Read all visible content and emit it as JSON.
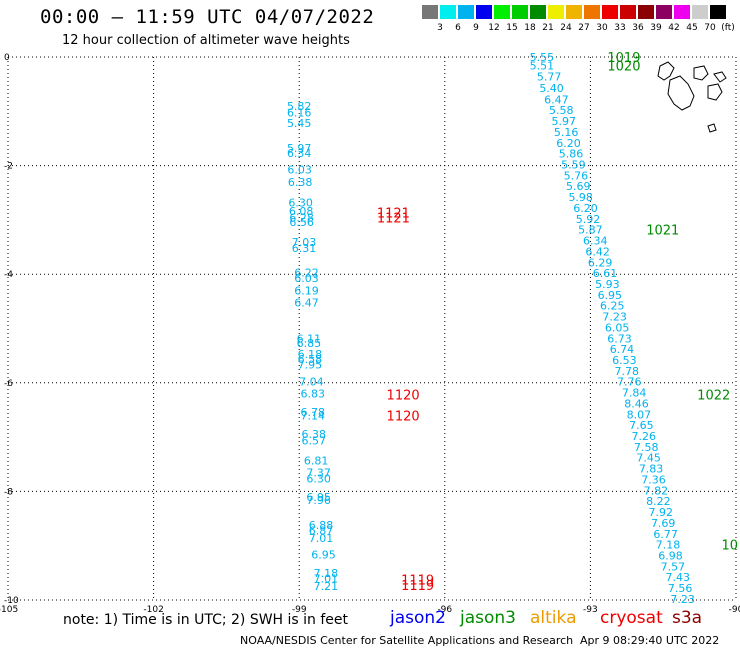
{
  "header": {
    "title": "00:00 – 11:59 UTC 04/07/2022",
    "subtitle": "12 hour collection of altimeter wave heights"
  },
  "colorbar": {
    "colors": [
      "#777777",
      "#00eeee",
      "#00b2ee",
      "#0000ee",
      "#00ee00",
      "#00cd00",
      "#008b00",
      "#eeee00",
      "#eeb400",
      "#ee7600",
      "#ee0000",
      "#cd0000",
      "#8b0000",
      "#8b0060",
      "#ee00ee",
      "#cdcdcd",
      "#000000"
    ],
    "labels": [
      "3",
      "6",
      "9",
      "12",
      "15",
      "18",
      "21",
      "24",
      "27",
      "30",
      "33",
      "36",
      "39",
      "42",
      "45",
      "70",
      "(ft)"
    ]
  },
  "axes": {
    "x_ticks": [
      "-105",
      "-102",
      "-99",
      "-96",
      "-93",
      "-90"
    ],
    "y_ticks": [
      "0",
      "-2",
      "-4",
      "-6",
      "-8",
      "-10"
    ],
    "xlim": [
      -105,
      -90
    ],
    "ylim": [
      -10,
      0
    ]
  },
  "colors": {
    "swh": "#00b2ee",
    "jason2": "#0000ee",
    "jason3": "#008b00",
    "altika": "#ee9a00",
    "cryosat": "#ee0000",
    "s3a": "#8b0000"
  },
  "track1_swh": [
    {
      "lon": -99.0,
      "lat": -0.9,
      "v": "5.82"
    },
    {
      "lon": -99.0,
      "lat": -1.02,
      "v": "6.16"
    },
    {
      "lon": -99.0,
      "lat": -1.22,
      "v": "5.45"
    },
    {
      "lon": -99.0,
      "lat": -1.68,
      "v": "5.97"
    },
    {
      "lon": -99.0,
      "lat": -1.77,
      "v": "6.34"
    },
    {
      "lon": -98.99,
      "lat": -2.07,
      "v": "6.03"
    },
    {
      "lon": -98.98,
      "lat": -2.3,
      "v": "6.38"
    },
    {
      "lon": -98.97,
      "lat": -2.68,
      "v": "6.30"
    },
    {
      "lon": -98.96,
      "lat": -2.84,
      "v": "6.08"
    },
    {
      "lon": -98.95,
      "lat": -2.96,
      "v": "6.28"
    },
    {
      "lon": -98.95,
      "lat": -3.04,
      "v": "6.56"
    },
    {
      "lon": -98.9,
      "lat": -3.41,
      "v": "7.03"
    },
    {
      "lon": -98.9,
      "lat": -3.52,
      "v": "6.31"
    },
    {
      "lon": -98.85,
      "lat": -3.97,
      "v": "6.22"
    },
    {
      "lon": -98.85,
      "lat": -4.07,
      "v": "6.03"
    },
    {
      "lon": -98.85,
      "lat": -4.3,
      "v": "6.19"
    },
    {
      "lon": -98.85,
      "lat": -4.52,
      "v": "6.47"
    },
    {
      "lon": -98.8,
      "lat": -5.18,
      "v": "6.11"
    },
    {
      "lon": -98.8,
      "lat": -5.27,
      "v": "6.85"
    },
    {
      "lon": -98.78,
      "lat": -5.47,
      "v": "6.18"
    },
    {
      "lon": -98.78,
      "lat": -5.56,
      "v": "6.58"
    },
    {
      "lon": -98.78,
      "lat": -5.66,
      "v": "7.95"
    },
    {
      "lon": -98.75,
      "lat": -5.98,
      "v": "7.04"
    },
    {
      "lon": -98.72,
      "lat": -6.2,
      "v": "6.83"
    },
    {
      "lon": -98.72,
      "lat": -6.54,
      "v": "6.78"
    },
    {
      "lon": -98.72,
      "lat": -6.6,
      "v": "7.14"
    },
    {
      "lon": -98.7,
      "lat": -6.94,
      "v": "6.38"
    },
    {
      "lon": -98.7,
      "lat": -7.06,
      "v": "6.57"
    },
    {
      "lon": -98.65,
      "lat": -7.43,
      "v": "6.81"
    },
    {
      "lon": -98.6,
      "lat": -7.65,
      "v": "7.37"
    },
    {
      "lon": -98.6,
      "lat": -7.76,
      "v": "6.30"
    },
    {
      "lon": -98.6,
      "lat": -8.1,
      "v": "6.95"
    },
    {
      "lon": -98.6,
      "lat": -8.16,
      "v": "7.96"
    },
    {
      "lon": -98.55,
      "lat": -8.62,
      "v": "6.88"
    },
    {
      "lon": -98.55,
      "lat": -8.72,
      "v": "6.87"
    },
    {
      "lon": -98.55,
      "lat": -8.86,
      "v": "7.01"
    },
    {
      "lon": -98.5,
      "lat": -9.16,
      "v": "6.95"
    },
    {
      "lon": -98.45,
      "lat": -9.5,
      "v": "7.18"
    },
    {
      "lon": -98.45,
      "lat": -9.6,
      "v": "7.01"
    },
    {
      "lon": -98.45,
      "lat": -9.74,
      "v": "7.21"
    }
  ],
  "track1_times": [
    {
      "lon": -97.4,
      "lat": -2.86,
      "t": "1121"
    },
    {
      "lon": -97.4,
      "lat": -2.96,
      "t": "1121"
    },
    {
      "lon": -97.2,
      "lat": -6.22,
      "t": "1120"
    },
    {
      "lon": -97.2,
      "lat": -6.6,
      "t": "1120"
    },
    {
      "lon": -96.9,
      "lat": -9.62,
      "t": "1119"
    },
    {
      "lon": -96.9,
      "lat": -9.72,
      "t": "1119"
    }
  ],
  "track2_swh": [
    {
      "lon": -94.0,
      "lat": 0.0,
      "v": "5.55"
    },
    {
      "lon": -94.0,
      "lat": -0.16,
      "v": "5.51"
    },
    {
      "lon": -93.85,
      "lat": -0.36,
      "v": "5.77"
    },
    {
      "lon": -93.8,
      "lat": -0.57,
      "v": "5.40"
    },
    {
      "lon": -93.7,
      "lat": -0.78,
      "v": "6.47"
    },
    {
      "lon": -93.6,
      "lat": -0.98,
      "v": "5.58"
    },
    {
      "lon": -93.55,
      "lat": -1.18,
      "v": "5.97"
    },
    {
      "lon": -93.5,
      "lat": -1.38,
      "v": "5.16"
    },
    {
      "lon": -93.45,
      "lat": -1.58,
      "v": "6.20"
    },
    {
      "lon": -93.4,
      "lat": -1.78,
      "v": "5.86"
    },
    {
      "lon": -93.35,
      "lat": -1.98,
      "v": "5.59"
    },
    {
      "lon": -93.3,
      "lat": -2.18,
      "v": "5.76"
    },
    {
      "lon": -93.25,
      "lat": -2.38,
      "v": "5.69"
    },
    {
      "lon": -93.2,
      "lat": -2.58,
      "v": "5.98"
    },
    {
      "lon": -93.1,
      "lat": -2.78,
      "v": "6.20"
    },
    {
      "lon": -93.05,
      "lat": -2.98,
      "v": "5.92"
    },
    {
      "lon": -93.0,
      "lat": -3.18,
      "v": "5.87"
    },
    {
      "lon": -92.9,
      "lat": -3.38,
      "v": "6.34"
    },
    {
      "lon": -92.85,
      "lat": -3.58,
      "v": "6.42"
    },
    {
      "lon": -92.8,
      "lat": -3.78,
      "v": "6.29"
    },
    {
      "lon": -92.7,
      "lat": -3.98,
      "v": "6.61"
    },
    {
      "lon": -92.65,
      "lat": -4.18,
      "v": "5.93"
    },
    {
      "lon": -92.6,
      "lat": -4.38,
      "v": "6.95"
    },
    {
      "lon": -92.55,
      "lat": -4.58,
      "v": "6.25"
    },
    {
      "lon": -92.5,
      "lat": -4.78,
      "v": "7.23"
    },
    {
      "lon": -92.45,
      "lat": -4.98,
      "v": "6.05"
    },
    {
      "lon": -92.4,
      "lat": -5.18,
      "v": "6.73"
    },
    {
      "lon": -92.35,
      "lat": -5.38,
      "v": "6.74"
    },
    {
      "lon": -92.3,
      "lat": -5.58,
      "v": "6.53"
    },
    {
      "lon": -92.25,
      "lat": -5.78,
      "v": "7.78"
    },
    {
      "lon": -92.2,
      "lat": -5.98,
      "v": "7.76"
    },
    {
      "lon": -92.1,
      "lat": -6.18,
      "v": "7.84"
    },
    {
      "lon": -92.05,
      "lat": -6.38,
      "v": "8.46"
    },
    {
      "lon": -92.0,
      "lat": -6.58,
      "v": "8.07"
    },
    {
      "lon": -91.95,
      "lat": -6.78,
      "v": "7.65"
    },
    {
      "lon": -91.9,
      "lat": -6.98,
      "v": "7.26"
    },
    {
      "lon": -91.85,
      "lat": -7.18,
      "v": "7.58"
    },
    {
      "lon": -91.8,
      "lat": -7.38,
      "v": "7.45"
    },
    {
      "lon": -91.75,
      "lat": -7.58,
      "v": "7.83"
    },
    {
      "lon": -91.7,
      "lat": -7.78,
      "v": "7.36"
    },
    {
      "lon": -91.65,
      "lat": -7.98,
      "v": "7.82"
    },
    {
      "lon": -91.6,
      "lat": -8.18,
      "v": "8.22"
    },
    {
      "lon": -91.55,
      "lat": -8.38,
      "v": "7.92"
    },
    {
      "lon": -91.5,
      "lat": -8.58,
      "v": "7.69"
    },
    {
      "lon": -91.45,
      "lat": -8.78,
      "v": "6.77"
    },
    {
      "lon": -91.4,
      "lat": -8.98,
      "v": "7.18"
    },
    {
      "lon": -91.35,
      "lat": -9.18,
      "v": "6.98"
    },
    {
      "lon": -91.3,
      "lat": -9.38,
      "v": "7.57"
    },
    {
      "lon": -91.2,
      "lat": -9.58,
      "v": "7.43"
    },
    {
      "lon": -91.15,
      "lat": -9.78,
      "v": "7.56"
    },
    {
      "lon": -91.1,
      "lat": -9.98,
      "v": "7.23"
    }
  ],
  "track2_times": [
    {
      "lon": -92.65,
      "lat": 0.0,
      "t": "1019"
    },
    {
      "lon": -92.65,
      "lat": -0.16,
      "t": "1020"
    },
    {
      "lon": -91.85,
      "lat": -3.18,
      "t": "1021"
    },
    {
      "lon": -90.8,
      "lat": -6.22,
      "t": "1022"
    },
    {
      "lon": -90.3,
      "lat": -8.98,
      "t": "10"
    }
  ],
  "footer": {
    "note": "note: 1) Time is in UTC; 2) SWH is in feet",
    "missions": [
      "jason2",
      "jason3",
      "altika",
      "cryosat",
      "s3a"
    ],
    "credit": "NOAA/NESDIS Center for Satellite Applications and Research",
    "timestamp": "Apr  9 08:29:40 UTC 2022"
  }
}
